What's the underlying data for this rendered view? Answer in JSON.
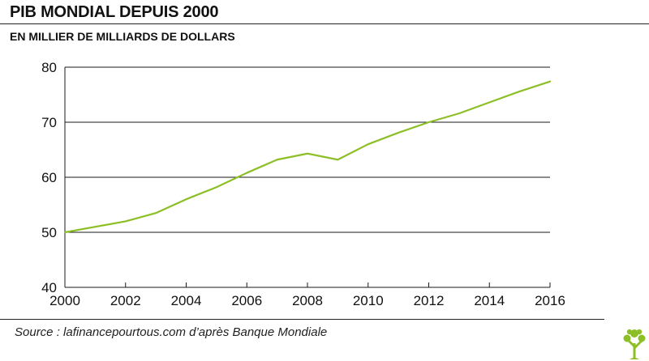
{
  "header": {
    "title": "PIB MONDIAL DEPUIS 2000",
    "subtitle": "EN MILLIER DE MILLIARDS DE DOLLARS"
  },
  "footer": {
    "source": "Source : lafinancepourtous.com d’après Banque Mondiale",
    "logo_icon": "tree-logo-icon"
  },
  "colors": {
    "line": "#8cbf26",
    "logo": "#8cbf26",
    "grid": "#1a1a1a",
    "text": "#111111"
  },
  "chart_data": {
    "type": "line",
    "title": "PIB MONDIAL DEPUIS 2000",
    "subtitle": "EN MILLIER DE MILLIARDS DE DOLLARS",
    "xlabel": "",
    "ylabel": "",
    "x": [
      2000,
      2001,
      2002,
      2003,
      2004,
      2005,
      2006,
      2007,
      2008,
      2009,
      2010,
      2011,
      2012,
      2013,
      2014,
      2015,
      2016
    ],
    "series": [
      {
        "name": "",
        "values": [
          50.0,
          51.0,
          52.0,
          53.5,
          56.0,
          58.2,
          60.8,
          63.2,
          64.3,
          63.2,
          66.0,
          68.1,
          70.0,
          71.6,
          73.6,
          75.6,
          77.4
        ]
      }
    ],
    "xlim": [
      2000,
      2016
    ],
    "ylim": [
      40,
      80
    ],
    "x_ticks": [
      2000,
      2002,
      2004,
      2006,
      2008,
      2010,
      2012,
      2014,
      2016
    ],
    "x_tick_labels": [
      "2000",
      "2002",
      "2004",
      "2006",
      "2008",
      "2010",
      "2012",
      "2014",
      "2016"
    ],
    "y_ticks": [
      40,
      50,
      60,
      70,
      80
    ],
    "y_tick_labels": [
      "40",
      "50",
      "60",
      "70",
      "80"
    ],
    "grid": "horizontal",
    "legend": "none"
  }
}
